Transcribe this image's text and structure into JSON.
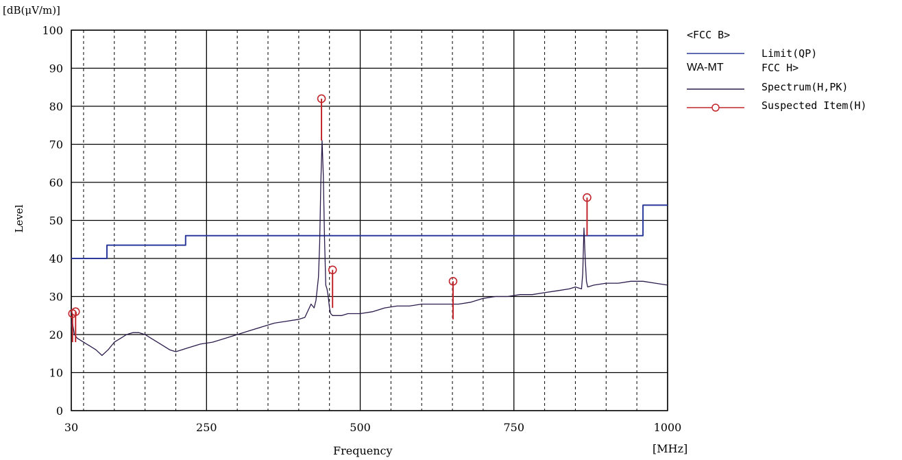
{
  "chart_data": {
    "type": "line",
    "title": "",
    "unit_label": "[dB(μV/m)]",
    "ylabel": "Level",
    "xlabel": "Frequency",
    "x_unit_label": "[MHz]",
    "xlim": [
      30,
      1000
    ],
    "ylim": [
      0,
      100
    ],
    "x_ticks": [
      30,
      250,
      500,
      750,
      1000
    ],
    "y_ticks": [
      0,
      10,
      20,
      30,
      40,
      50,
      60,
      70,
      80,
      90,
      100
    ],
    "grid": true,
    "legend": {
      "placement": "right",
      "entries": [
        {
          "text": "<FCC B>",
          "line": false
        },
        {
          "text": "Limit(QP)",
          "line": true,
          "color": "#2b3a9a"
        },
        {
          "prefix": "WA-MT",
          "text": "FCC  H>",
          "line": false
        },
        {
          "text": "Spectrum(H,PK)",
          "line": true,
          "color": "#2a1a4a"
        },
        {
          "text": "Suspected Item(H)",
          "line": true,
          "marker": "circle",
          "color": "#c0262c"
        }
      ]
    },
    "series": [
      {
        "name": "Limit(QP)",
        "color": "#2b3a9a",
        "step": true,
        "x": [
          30,
          88,
          88,
          216,
          216,
          960,
          960,
          1000
        ],
        "y": [
          40,
          40,
          43.5,
          43.5,
          46,
          46,
          54,
          54
        ]
      },
      {
        "name": "Spectrum(H,PK)",
        "color": "#2a1a4a",
        "x": [
          30,
          31,
          33,
          35,
          40,
          50,
          60,
          70,
          80,
          90,
          100,
          110,
          120,
          130,
          140,
          150,
          160,
          170,
          180,
          190,
          200,
          210,
          220,
          240,
          260,
          280,
          300,
          320,
          340,
          360,
          380,
          400,
          410,
          420,
          425,
          428,
          430,
          432,
          434,
          436,
          438,
          440,
          442,
          444,
          446,
          448,
          450,
          452,
          455,
          460,
          470,
          480,
          500,
          520,
          540,
          560,
          580,
          600,
          620,
          640,
          650,
          660,
          680,
          700,
          720,
          740,
          760,
          780,
          800,
          820,
          840,
          850,
          860,
          862,
          864,
          866,
          868,
          870,
          880,
          900,
          920,
          940,
          960,
          980,
          1000
        ],
        "y": [
          22,
          24,
          22,
          20,
          19,
          18,
          17,
          16,
          14.5,
          16,
          18,
          19,
          20,
          20.5,
          20.5,
          20,
          19,
          18,
          17,
          16,
          15.5,
          16,
          16.5,
          17.5,
          18,
          19,
          20,
          21,
          22,
          23,
          23.5,
          24,
          24.5,
          28,
          27,
          29,
          32,
          35,
          44,
          60,
          71,
          62,
          45,
          33,
          32,
          30,
          27,
          25.5,
          25,
          25,
          25,
          25.5,
          25.5,
          26,
          27,
          27.5,
          27.5,
          28,
          28,
          28,
          28,
          28,
          28.5,
          29.5,
          30,
          30,
          30.5,
          30.5,
          31,
          31.5,
          32,
          32.5,
          32,
          36,
          48,
          40,
          34,
          32.5,
          33,
          33.5,
          33.5,
          34,
          34,
          33.5,
          33
        ]
      },
      {
        "name": "Suspected Item(H)",
        "color": "#c0262c",
        "type": "stem",
        "x": [
          32,
          37,
          437,
          455,
          651,
          869
        ],
        "y": [
          25.5,
          26,
          82,
          37,
          34,
          56
        ],
        "base": [
          18,
          18,
          71,
          27,
          24,
          46
        ]
      }
    ]
  }
}
